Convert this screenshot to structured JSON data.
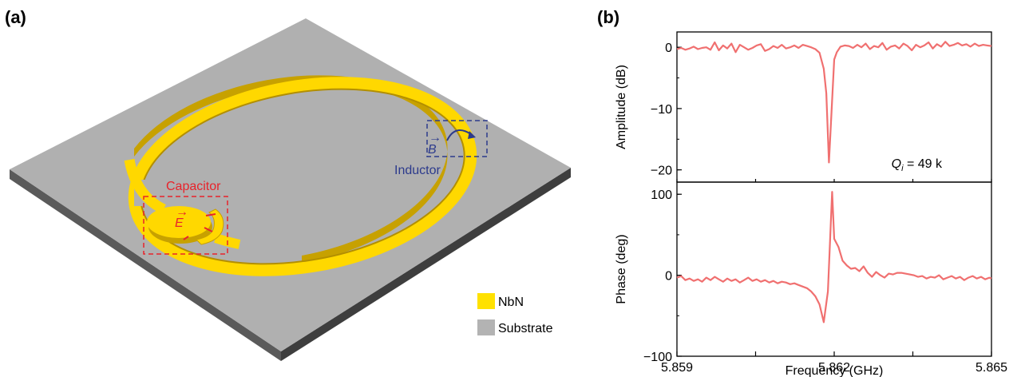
{
  "panel_a": {
    "label": "(a)",
    "capacitor_label": "Capacitor",
    "inductor_label": "Inductor",
    "e_field_label": "E",
    "b_field_label": "B",
    "legend": [
      {
        "label": "NbN",
        "color": "#ffe100"
      },
      {
        "label": "Substrate",
        "color": "#b3b3b3"
      }
    ]
  },
  "panel_b": {
    "label": "(b)",
    "annotation": "Q",
    "annotation_sub": "i",
    "annotation_value": " = 49 k"
  },
  "chart_data": [
    {
      "type": "line",
      "ylabel": "Amplitude (dB)",
      "xlabel": "",
      "xlim": [
        5.859,
        5.865
      ],
      "ylim": [
        -22,
        2.5
      ],
      "yticks": [
        0,
        -10,
        -20
      ],
      "ytick_labels": [
        "0",
        "−10",
        "−20"
      ],
      "color": "#f07070",
      "series": [
        {
          "x": [
            5.859,
            5.85908,
            5.85916,
            5.85924,
            5.85932,
            5.8594,
            5.85948,
            5.85956,
            5.85964,
            5.85972,
            5.8598,
            5.85988,
            5.85996,
            5.86004,
            5.86012,
            5.8602,
            5.86028,
            5.86036,
            5.86044,
            5.86052,
            5.8606,
            5.86068,
            5.86076,
            5.86084,
            5.86092,
            5.861,
            5.86108,
            5.86116,
            5.86124,
            5.86132,
            5.8614,
            5.86148,
            5.86156,
            5.86164,
            5.86172,
            5.8618,
            5.86185,
            5.8619,
            5.862,
            5.86205,
            5.86212,
            5.8622,
            5.86228,
            5.86236,
            5.86244,
            5.86252,
            5.8626,
            5.86268,
            5.86276,
            5.86284,
            5.86292,
            5.863,
            5.86308,
            5.86316,
            5.86324,
            5.86332,
            5.8634,
            5.86348,
            5.86356,
            5.86364,
            5.86372,
            5.8638,
            5.86388,
            5.86396,
            5.86404,
            5.86412,
            5.8642,
            5.86428,
            5.86436,
            5.86444,
            5.86452,
            5.8646,
            5.86468,
            5.86476,
            5.86484,
            5.86492,
            5.865
          ],
          "y": [
            -0.3,
            -0.1,
            -0.4,
            -0.2,
            0.1,
            -0.3,
            -0.1,
            0.0,
            -0.4,
            0.8,
            -0.5,
            0.3,
            -0.2,
            0.6,
            -0.8,
            0.4,
            0.0,
            -0.4,
            -0.1,
            0.3,
            0.5,
            -0.6,
            -0.3,
            0.2,
            -0.1,
            0.4,
            -0.2,
            0.0,
            0.3,
            -0.1,
            0.4,
            0.2,
            0.0,
            -0.3,
            -0.9,
            -3.5,
            -7.5,
            -18.8,
            -2.0,
            -0.8,
            0.1,
            0.3,
            0.2,
            -0.1,
            0.4,
            0.0,
            0.6,
            -0.3,
            0.2,
            0.0,
            0.7,
            -0.4,
            0.1,
            0.3,
            -0.2,
            0.6,
            0.2,
            -0.5,
            0.4,
            0.0,
            0.3,
            0.8,
            -0.2,
            0.5,
            0.1,
            0.9,
            0.2,
            0.4,
            0.7,
            0.3,
            0.5,
            0.1,
            0.6,
            0.2,
            0.4,
            0.3,
            0.2
          ]
        }
      ]
    },
    {
      "type": "line",
      "ylabel": "Phase (deg)",
      "xlabel": "Frequency (GHz)",
      "xlim": [
        5.859,
        5.865
      ],
      "ylim": [
        -100,
        115
      ],
      "xticks": [
        5.859,
        5.862,
        5.865
      ],
      "xtick_labels": [
        "5.859",
        "5.862",
        "5.865"
      ],
      "yticks": [
        100,
        0,
        -100
      ],
      "ytick_labels": [
        "100",
        "0",
        "−100"
      ],
      "color": "#f07070",
      "series": [
        {
          "x": [
            5.859,
            5.85908,
            5.85916,
            5.85924,
            5.85932,
            5.8594,
            5.85948,
            5.85956,
            5.85964,
            5.85972,
            5.8598,
            5.85988,
            5.85996,
            5.86004,
            5.86012,
            5.8602,
            5.86028,
            5.86036,
            5.86044,
            5.86052,
            5.8606,
            5.86068,
            5.86076,
            5.86084,
            5.86092,
            5.861,
            5.86108,
            5.86116,
            5.86124,
            5.86132,
            5.8614,
            5.86148,
            5.86156,
            5.86164,
            5.86172,
            5.8618,
            5.86188,
            5.86196,
            5.862,
            5.86208,
            5.86216,
            5.86224,
            5.86232,
            5.8624,
            5.86248,
            5.86256,
            5.86264,
            5.86272,
            5.8628,
            5.86288,
            5.86296,
            5.86304,
            5.86312,
            5.8632,
            5.86328,
            5.86336,
            5.86344,
            5.86352,
            5.8636,
            5.86368,
            5.86376,
            5.86384,
            5.86392,
            5.864,
            5.86408,
            5.86416,
            5.86424,
            5.86432,
            5.8644,
            5.86448,
            5.86456,
            5.86464,
            5.86472,
            5.8648,
            5.86488,
            5.86496,
            5.865
          ],
          "y": [
            -3,
            -1,
            -6,
            -4,
            -7,
            -5,
            -8,
            -3,
            -6,
            -2,
            -5,
            -8,
            -4,
            -7,
            -5,
            -9,
            -6,
            -3,
            -7,
            -5,
            -8,
            -6,
            -9,
            -7,
            -10,
            -8,
            -9,
            -11,
            -10,
            -12,
            -14,
            -16,
            -20,
            -26,
            -36,
            -58,
            -20,
            103,
            45,
            35,
            18,
            12,
            8,
            9,
            5,
            11,
            3,
            -2,
            4,
            0,
            -3,
            2,
            1,
            3,
            3,
            2,
            1,
            0,
            -2,
            -1,
            -4,
            -2,
            -3,
            0,
            -5,
            -3,
            -1,
            -4,
            -2,
            -6,
            -3,
            -1,
            -4,
            -2,
            -5,
            -3,
            -4
          ]
        }
      ]
    }
  ]
}
